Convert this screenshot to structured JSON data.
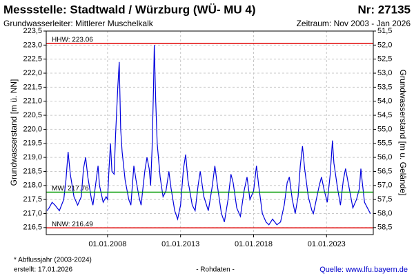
{
  "chart_data": {
    "type": "line",
    "title": "Messstelle: Stadtwald / Würzburg  (WÜ- MU 4)",
    "number": "Nr: 27135",
    "aquifer": "Grundwasserleiter:  Mittlerer Muschelkalk",
    "period": "Zeitraum: Nov 2003 - Jan 2026",
    "y_label": "Grundwasserstand [m ü. NN]",
    "y2_label": "Grundwasserstand [m u. Gelände]",
    "footnote": "* Abflussjahr (2003-2024)",
    "created": "erstellt:  17.01.2026",
    "data_note": "- Rohdaten -",
    "source": "Quelle: www.lfu.bayern.de",
    "grid": true,
    "xlim": [
      2003.8,
      2026.2
    ],
    "xticks": [
      {
        "value": 2008,
        "label": "01.01.2008"
      },
      {
        "value": 2013,
        "label": "01.01.2013"
      },
      {
        "value": 2018,
        "label": "01.01.2018"
      },
      {
        "value": 2023,
        "label": "01.01.2023"
      }
    ],
    "ylim": [
      216.25,
      223.5
    ],
    "yticks": [
      {
        "value": 216.5,
        "label": "216,5"
      },
      {
        "value": 217,
        "label": "217,0"
      },
      {
        "value": 217.5,
        "label": "217,5"
      },
      {
        "value": 218,
        "label": "218,0"
      },
      {
        "value": 218.5,
        "label": "218,5"
      },
      {
        "value": 219,
        "label": "219,0"
      },
      {
        "value": 219.5,
        "label": "219,5"
      },
      {
        "value": 220,
        "label": "220,0"
      },
      {
        "value": 220.5,
        "label": "220,5"
      },
      {
        "value": 221,
        "label": "221,0"
      },
      {
        "value": 221.5,
        "label": "221,5"
      },
      {
        "value": 222,
        "label": "222,0"
      },
      {
        "value": 222.5,
        "label": "222,5"
      },
      {
        "value": 223,
        "label": "223,0"
      },
      {
        "value": 223.5,
        "label": "223,5"
      }
    ],
    "y2lim": [
      58.75,
      51.5
    ],
    "y2ticks": [
      {
        "value": 51.5,
        "label": "51,5"
      },
      {
        "value": 52,
        "label": "52,0"
      },
      {
        "value": 52.5,
        "label": "52,5"
      },
      {
        "value": 53,
        "label": "53,0"
      },
      {
        "value": 53.5,
        "label": "53,5"
      },
      {
        "value": 54,
        "label": "54,0"
      },
      {
        "value": 54.5,
        "label": "54,5"
      },
      {
        "value": 55,
        "label": "55,0"
      },
      {
        "value": 55.5,
        "label": "55,5"
      },
      {
        "value": 56,
        "label": "56,0"
      },
      {
        "value": 56.5,
        "label": "56,5"
      },
      {
        "value": 57,
        "label": "57,0"
      },
      {
        "value": 57.5,
        "label": "57,5"
      },
      {
        "value": 58,
        "label": "58,0"
      },
      {
        "value": 58.5,
        "label": "58,5"
      }
    ],
    "reference_lines": [
      {
        "label": "HHW: 223.06",
        "value": 223.06,
        "color": "#e00000"
      },
      {
        "label": "MW: 217.76",
        "value": 217.76,
        "color": "#009900"
      },
      {
        "label": "NNW: 216.49",
        "value": 216.49,
        "color": "#e00000"
      }
    ],
    "series": [
      {
        "color": "#0000dd",
        "x": [
          2003.85,
          2004.0,
          2004.2,
          2004.4,
          2004.7,
          2005.0,
          2005.15,
          2005.3,
          2005.45,
          2005.7,
          2005.95,
          2006.2,
          2006.35,
          2006.5,
          2006.65,
          2006.9,
          2007.0,
          2007.25,
          2007.35,
          2007.45,
          2007.7,
          2007.9,
          2008.0,
          2008.1,
          2008.2,
          2008.3,
          2008.45,
          2008.55,
          2008.7,
          2008.8,
          2008.9,
          2009.0,
          2009.2,
          2009.45,
          2009.6,
          2009.8,
          2009.95,
          2010.15,
          2010.3,
          2010.55,
          2010.7,
          2010.85,
          2010.95,
          2011.05,
          2011.15,
          2011.2,
          2011.3,
          2011.4,
          2011.6,
          2011.8,
          2012.0,
          2012.2,
          2012.35,
          2012.6,
          2012.8,
          2013.0,
          2013.2,
          2013.35,
          2013.5,
          2013.8,
          2014.0,
          2014.2,
          2014.35,
          2014.6,
          2014.9,
          2015.15,
          2015.35,
          2015.55,
          2015.8,
          2016.0,
          2016.25,
          2016.45,
          2016.6,
          2016.85,
          2017.1,
          2017.35,
          2017.55,
          2017.75,
          2018.0,
          2018.2,
          2018.35,
          2018.6,
          2018.85,
          2019.05,
          2019.3,
          2019.6,
          2019.85,
          2020.1,
          2020.3,
          2020.45,
          2020.65,
          2020.85,
          2021.05,
          2021.2,
          2021.35,
          2021.5,
          2021.75,
          2022.0,
          2022.1,
          2022.5,
          2022.65,
          2022.85,
          2023.05,
          2023.25,
          2023.4,
          2023.5,
          2023.75,
          2023.95,
          2024.15,
          2024.3,
          2024.55,
          2024.8,
          2025.05,
          2025.25,
          2025.35,
          2025.45,
          2025.6,
          2025.8,
          2026.0
        ],
        "values": [
          217.1,
          217.2,
          217.4,
          217.3,
          217.1,
          217.5,
          218.2,
          219.2,
          218.4,
          217.6,
          217.3,
          217.6,
          218.6,
          219.0,
          218.3,
          217.5,
          217.3,
          218.3,
          218.7,
          218.0,
          217.4,
          217.6,
          217.5,
          218.6,
          219.5,
          218.5,
          218.4,
          219.8,
          221.5,
          222.4,
          220.0,
          219.2,
          218.2,
          217.5,
          217.3,
          218.7,
          218.2,
          217.6,
          217.3,
          218.5,
          219.0,
          218.6,
          218.0,
          219.3,
          221.5,
          223.0,
          221.0,
          219.5,
          218.3,
          217.6,
          217.8,
          218.5,
          217.9,
          217.1,
          216.8,
          217.3,
          218.6,
          219.1,
          218.2,
          217.3,
          217.1,
          218.0,
          218.5,
          217.6,
          217.1,
          217.9,
          218.7,
          217.9,
          217.0,
          216.7,
          217.5,
          218.4,
          218.1,
          217.2,
          216.9,
          217.8,
          218.3,
          217.5,
          217.8,
          218.7,
          218.0,
          217.0,
          216.7,
          216.6,
          216.8,
          216.6,
          216.7,
          217.3,
          218.1,
          218.3,
          217.5,
          217.0,
          217.6,
          218.7,
          219.4,
          218.6,
          217.6,
          217.1,
          217.0,
          218.0,
          218.3,
          217.8,
          217.4,
          218.4,
          219.6,
          218.8,
          217.9,
          217.3,
          218.2,
          218.6,
          217.9,
          217.2,
          217.5,
          217.9,
          218.6,
          218.1,
          217.4,
          217.2,
          217.0
        ]
      }
    ]
  }
}
